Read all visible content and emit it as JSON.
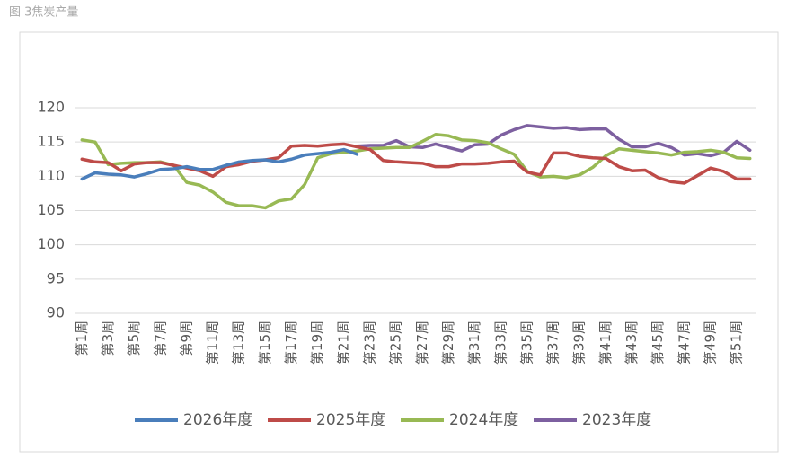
{
  "caption": "图 3焦炭产量",
  "chart_data": {
    "type": "line",
    "categories": [
      "第1周",
      null,
      "第3周",
      null,
      "第5周",
      null,
      "第7周",
      null,
      "第9周",
      null,
      "第11周",
      null,
      "第13周",
      null,
      "第15周",
      null,
      "第17周",
      null,
      "第19周",
      null,
      "第21周",
      null,
      "第23周",
      null,
      "第25周",
      null,
      "第27周",
      null,
      "第29周",
      null,
      "第31周",
      null,
      "第33周",
      null,
      "第35周",
      null,
      "第37周",
      null,
      "第39周",
      null,
      "第41周",
      null,
      "第43周",
      null,
      "第45周",
      null,
      "第47周",
      null,
      "第49周",
      null,
      "第51周",
      null
    ],
    "series": [
      {
        "name": "2026年度",
        "color": "#4a7ebb",
        "values": [
          109.6,
          110.5,
          110.3,
          110.2,
          109.9,
          110.4,
          111.0,
          111.1,
          111.4,
          111.0,
          111.0,
          111.6,
          112.1,
          112.3,
          112.4,
          112.1,
          112.5,
          113.1,
          113.3,
          113.5,
          113.9,
          113.2,
          null,
          null,
          null,
          null,
          null,
          null,
          null,
          null,
          null,
          null,
          null,
          null,
          null,
          null,
          null,
          null,
          null,
          null,
          null,
          null,
          null,
          null,
          null,
          null,
          null,
          null,
          null,
          null,
          null,
          null
        ]
      },
      {
        "name": "2025年度",
        "color": "#be4b48",
        "values": [
          112.5,
          112.1,
          112.0,
          110.8,
          111.8,
          112.0,
          112.0,
          111.6,
          111.2,
          110.8,
          110.0,
          111.4,
          111.7,
          112.2,
          112.4,
          112.7,
          114.4,
          114.5,
          114.4,
          114.6,
          114.7,
          114.3,
          113.9,
          112.3,
          112.1,
          112.0,
          111.9,
          111.4,
          111.4,
          111.8,
          111.8,
          111.9,
          112.1,
          112.2,
          110.6,
          110.2,
          113.4,
          113.4,
          112.9,
          112.7,
          112.6,
          111.4,
          110.8,
          110.9,
          109.8,
          109.2,
          109.0,
          110.1,
          111.2,
          110.7,
          109.6,
          109.6
        ]
      },
      {
        "name": "2024年度",
        "color": "#98b954",
        "values": [
          115.3,
          115.0,
          111.7,
          111.9,
          112.0,
          112.0,
          112.1,
          111.6,
          109.1,
          108.7,
          107.7,
          106.2,
          105.7,
          105.7,
          105.4,
          106.4,
          106.7,
          108.8,
          112.7,
          113.3,
          113.5,
          113.7,
          114.0,
          114.1,
          114.2,
          114.2,
          115.1,
          116.1,
          115.9,
          115.3,
          115.2,
          114.9,
          114.0,
          113.2,
          110.7,
          109.9,
          110.0,
          109.8,
          110.2,
          111.3,
          113.0,
          114.0,
          113.8,
          113.6,
          113.4,
          113.1,
          113.5,
          113.6,
          113.8,
          113.5,
          112.7,
          112.6
        ]
      },
      {
        "name": "2023年度",
        "color": "#7d60a0",
        "values": [
          null,
          null,
          null,
          null,
          null,
          null,
          null,
          null,
          null,
          null,
          null,
          null,
          null,
          null,
          null,
          null,
          null,
          null,
          null,
          null,
          null,
          114.4,
          114.5,
          114.5,
          115.2,
          114.3,
          114.2,
          114.7,
          114.2,
          113.7,
          114.6,
          114.7,
          116.0,
          116.8,
          117.4,
          117.2,
          117.0,
          117.1,
          116.8,
          116.9,
          116.9,
          115.4,
          114.3,
          114.3,
          114.8,
          114.2,
          113.1,
          113.3,
          113.0,
          113.5,
          115.1,
          113.8
        ]
      }
    ],
    "ylim": [
      90,
      120
    ],
    "yticks": [
      90,
      95,
      100,
      105,
      110,
      115,
      120
    ],
    "grid": true,
    "legend": "bottom"
  }
}
